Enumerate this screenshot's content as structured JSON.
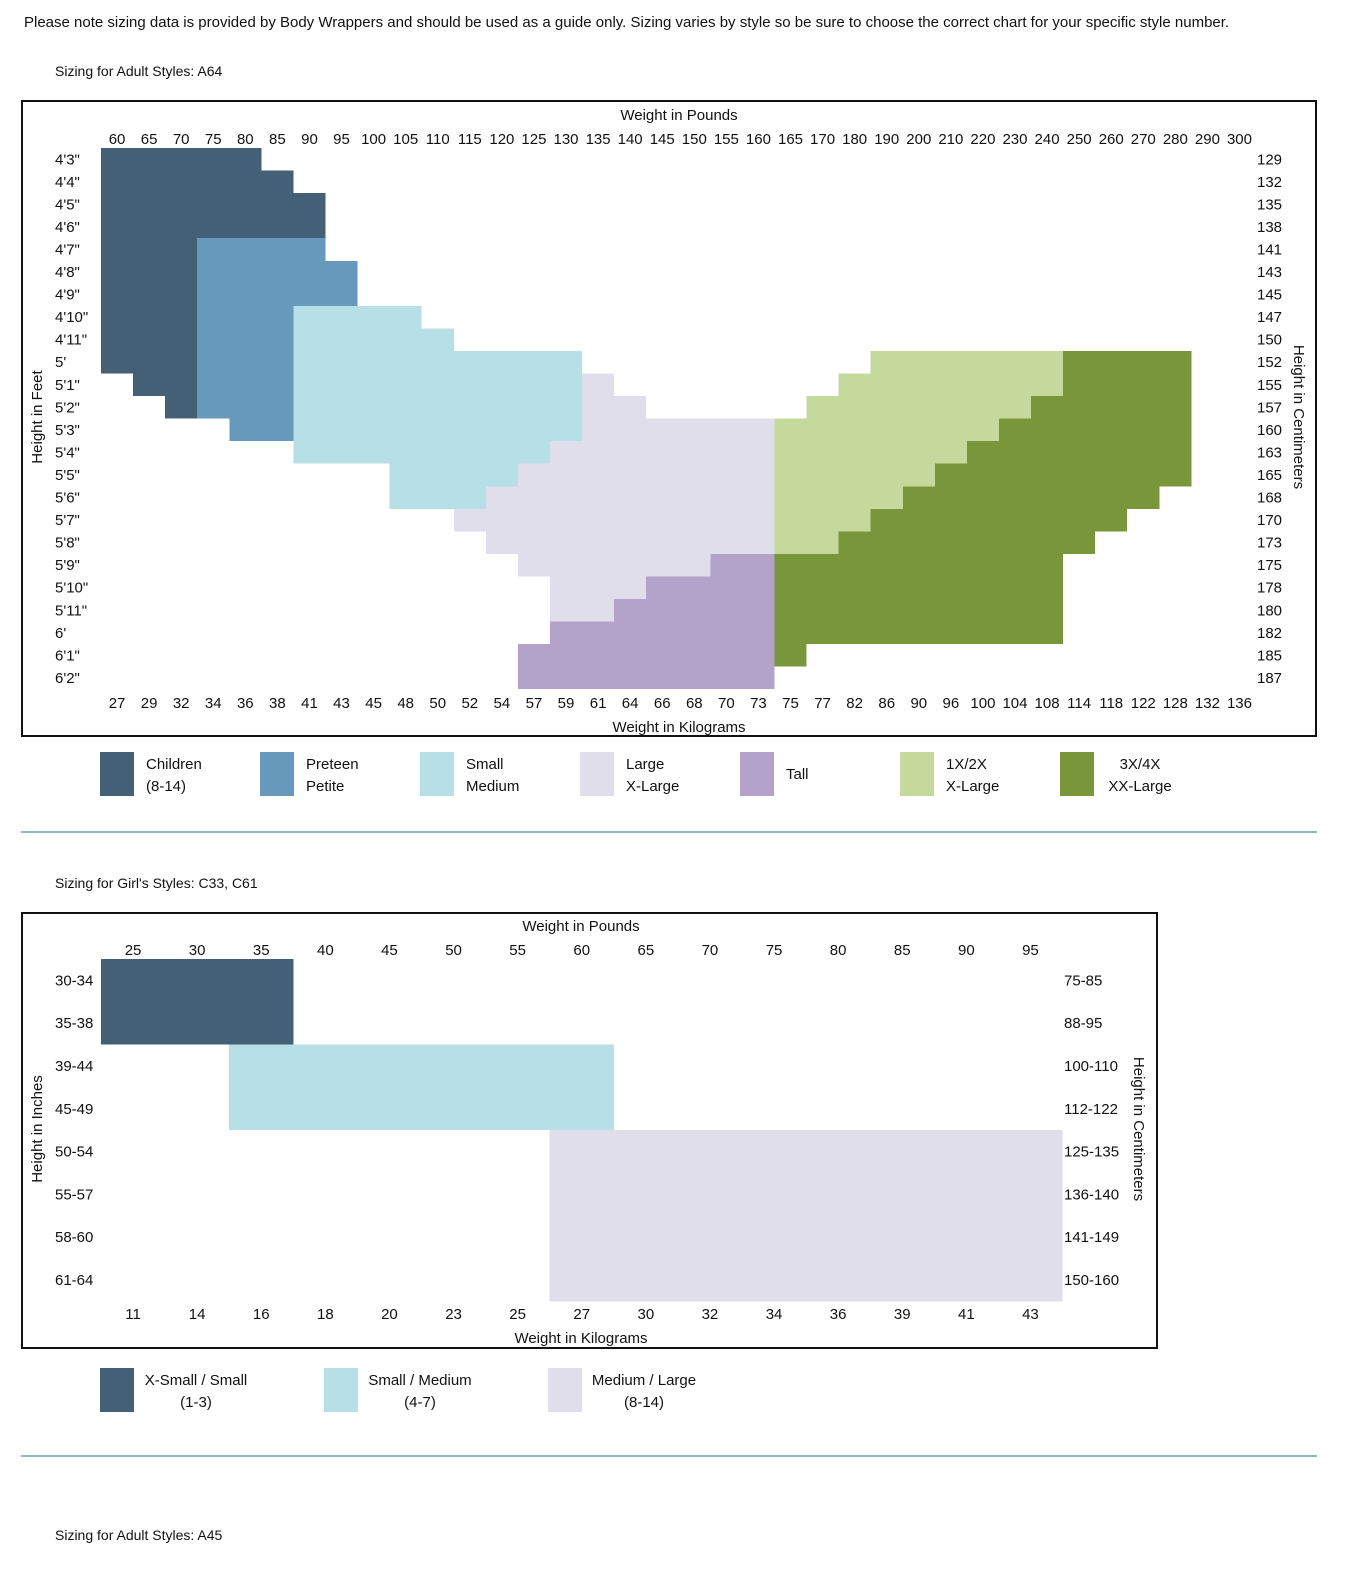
{
  "note": "Please note sizing data is provided by Body Wrappers and should be used as a guide only. Sizing varies by style so be sure to choose the correct chart for your specific style number.",
  "sections": [
    {
      "title": "Sizing for Adult Styles: A64"
    },
    {
      "title": "Sizing for Girl's Styles: C33, C61"
    },
    {
      "title": "Sizing for Adult Styles: A45"
    }
  ],
  "chart_data": [
    {
      "type": "heatmap",
      "top_axis_label": "Weight in Pounds",
      "bottom_axis_label": "Weight in Kilograms",
      "left_axis_label": "Height in Feet",
      "right_axis_label": "Height in Centimeters",
      "x_pounds": [
        "60",
        "65",
        "70",
        "75",
        "80",
        "85",
        "90",
        "95",
        "100",
        "105",
        "110",
        "115",
        "120",
        "125",
        "130",
        "135",
        "140",
        "145",
        "150",
        "155",
        "160",
        "165",
        "170",
        "180",
        "190",
        "200",
        "210",
        "220",
        "230",
        "240",
        "250",
        "260",
        "270",
        "280",
        "290",
        "300"
      ],
      "x_kilograms": [
        "27",
        "29",
        "32",
        "34",
        "36",
        "38",
        "41",
        "43",
        "45",
        "48",
        "50",
        "52",
        "54",
        "57",
        "59",
        "61",
        "64",
        "66",
        "68",
        "70",
        "73",
        "75",
        "77",
        "82",
        "86",
        "90",
        "96",
        "100",
        "104",
        "108",
        "114",
        "118",
        "122",
        "128",
        "132",
        "136"
      ],
      "y_feet": [
        "4'3\"",
        "4'4\"",
        "4'5\"",
        "4'6\"",
        "4'7\"",
        "4'8\"",
        "4'9\"",
        "4'10\"",
        "4'11\"",
        "5'",
        "5'1\"",
        "5'2\"",
        "5'3\"",
        "5'4\"",
        "5'5\"",
        "5'6\"",
        "5'7\"",
        "5'8\"",
        "5'9\"",
        "5'10\"",
        "5'11\"",
        "6'",
        "6'1\"",
        "6'2\""
      ],
      "y_centimeters": [
        "129",
        "132",
        "135",
        "138",
        "141",
        "143",
        "145",
        "147",
        "150",
        "152",
        "155",
        "157",
        "160",
        "163",
        "165",
        "168",
        "170",
        "173",
        "175",
        "178",
        "180",
        "182",
        "185",
        "187"
      ],
      "sizes": [
        {
          "label": "Children",
          "sub": "(8-14)",
          "color": "#436077",
          "rows": [
            [
              0,
              0,
              4
            ],
            [
              1,
              0,
              5
            ],
            [
              2,
              0,
              6
            ],
            [
              3,
              0,
              6
            ],
            [
              4,
              0,
              2
            ],
            [
              5,
              0,
              2
            ],
            [
              6,
              0,
              2
            ],
            [
              7,
              0,
              2
            ],
            [
              8,
              0,
              2
            ],
            [
              9,
              0,
              2
            ],
            [
              10,
              1,
              2
            ],
            [
              11,
              2,
              2
            ]
          ]
        },
        {
          "label": "Preteen",
          "sub": "Petite",
          "color": "#6699bc",
          "rows": [
            [
              4,
              3,
              6
            ],
            [
              5,
              3,
              7
            ],
            [
              6,
              3,
              7
            ],
            [
              7,
              3,
              5
            ],
            [
              8,
              3,
              5
            ],
            [
              9,
              3,
              5
            ],
            [
              10,
              3,
              5
            ],
            [
              11,
              3,
              5
            ],
            [
              12,
              4,
              5
            ]
          ]
        },
        {
          "label": "Small",
          "sub": "Medium",
          "color": "#b7dfe6",
          "rows": [
            [
              7,
              6,
              9
            ],
            [
              8,
              6,
              10
            ],
            [
              9,
              6,
              14
            ],
            [
              10,
              6,
              14
            ],
            [
              11,
              6,
              14
            ],
            [
              12,
              6,
              14
            ],
            [
              13,
              6,
              13
            ],
            [
              14,
              9,
              12
            ],
            [
              15,
              9,
              11
            ]
          ]
        },
        {
          "label": "Large",
          "sub": "X-Large",
          "color": "#e1deec",
          "rows": [
            [
              10,
              15,
              15
            ],
            [
              11,
              15,
              16
            ],
            [
              12,
              15,
              20
            ],
            [
              13,
              14,
              20
            ],
            [
              14,
              13,
              20
            ],
            [
              15,
              12,
              20
            ],
            [
              16,
              11,
              20
            ],
            [
              17,
              12,
              20
            ],
            [
              18,
              13,
              18
            ],
            [
              19,
              14,
              16
            ],
            [
              20,
              14,
              15
            ]
          ]
        },
        {
          "label": "Tall",
          "sub": "",
          "color": "#b3a2c9",
          "rows": [
            [
              18,
              19,
              20
            ],
            [
              19,
              17,
              20
            ],
            [
              20,
              16,
              20
            ],
            [
              21,
              14,
              20
            ],
            [
              22,
              13,
              20
            ],
            [
              23,
              13,
              20
            ]
          ]
        },
        {
          "label": "1X/2X",
          "sub": "X-Large",
          "color": "#c5d99c",
          "rows": [
            [
              9,
              24,
              29
            ],
            [
              10,
              23,
              29
            ],
            [
              11,
              22,
              28
            ],
            [
              12,
              21,
              27
            ],
            [
              13,
              21,
              26
            ],
            [
              14,
              21,
              25
            ],
            [
              15,
              21,
              24
            ],
            [
              16,
              21,
              23
            ],
            [
              17,
              21,
              22
            ]
          ]
        },
        {
          "label": "3X/4X",
          "sub": "XX-Large",
          "color": "#7a963b",
          "rows": [
            [
              9,
              30,
              33
            ],
            [
              10,
              30,
              33
            ],
            [
              11,
              29,
              33
            ],
            [
              12,
              28,
              33
            ],
            [
              13,
              27,
              33
            ],
            [
              14,
              26,
              33
            ],
            [
              15,
              25,
              32
            ],
            [
              16,
              24,
              31
            ],
            [
              17,
              23,
              30
            ],
            [
              18,
              21,
              29
            ],
            [
              19,
              21,
              29
            ],
            [
              20,
              21,
              29
            ],
            [
              21,
              21,
              29
            ],
            [
              22,
              21,
              21
            ]
          ]
        }
      ]
    },
    {
      "type": "heatmap",
      "top_axis_label": "Weight in Pounds",
      "bottom_axis_label": "Weight in Kilograms",
      "left_axis_label": "Height in Inches",
      "right_axis_label": "Height in Centimeters",
      "x_pounds": [
        "25",
        "30",
        "35",
        "40",
        "45",
        "50",
        "55",
        "60",
        "65",
        "70",
        "75",
        "80",
        "85",
        "90",
        "95"
      ],
      "x_kilograms": [
        "11",
        "14",
        "16",
        "18",
        "20",
        "23",
        "25",
        "27",
        "30",
        "32",
        "34",
        "36",
        "39",
        "41",
        "43"
      ],
      "y_inches": [
        "30-34",
        "35-38",
        "39-44",
        "45-49",
        "50-54",
        "55-57",
        "58-60",
        "61-64"
      ],
      "y_centimeters": [
        "75-85",
        "88-95",
        "100-110",
        "112-122",
        "125-135",
        "136-140",
        "141-149",
        "150-160"
      ],
      "sizes": [
        {
          "label": "X-Small / Small",
          "sub": "(1-3)",
          "color": "#436077",
          "rows": [
            [
              0,
              0,
              2
            ],
            [
              1,
              0,
              2
            ]
          ]
        },
        {
          "label": "Small / Medium",
          "sub": "(4-7)",
          "color": "#b7dfe6",
          "rows": [
            [
              2,
              2,
              7
            ],
            [
              3,
              2,
              7
            ]
          ]
        },
        {
          "label": "Medium / Large",
          "sub": "(8-14)",
          "color": "#e1deec",
          "rows": [
            [
              4,
              7,
              14
            ],
            [
              5,
              7,
              14
            ],
            [
              6,
              7,
              14
            ],
            [
              7,
              7,
              14
            ]
          ]
        }
      ]
    }
  ]
}
